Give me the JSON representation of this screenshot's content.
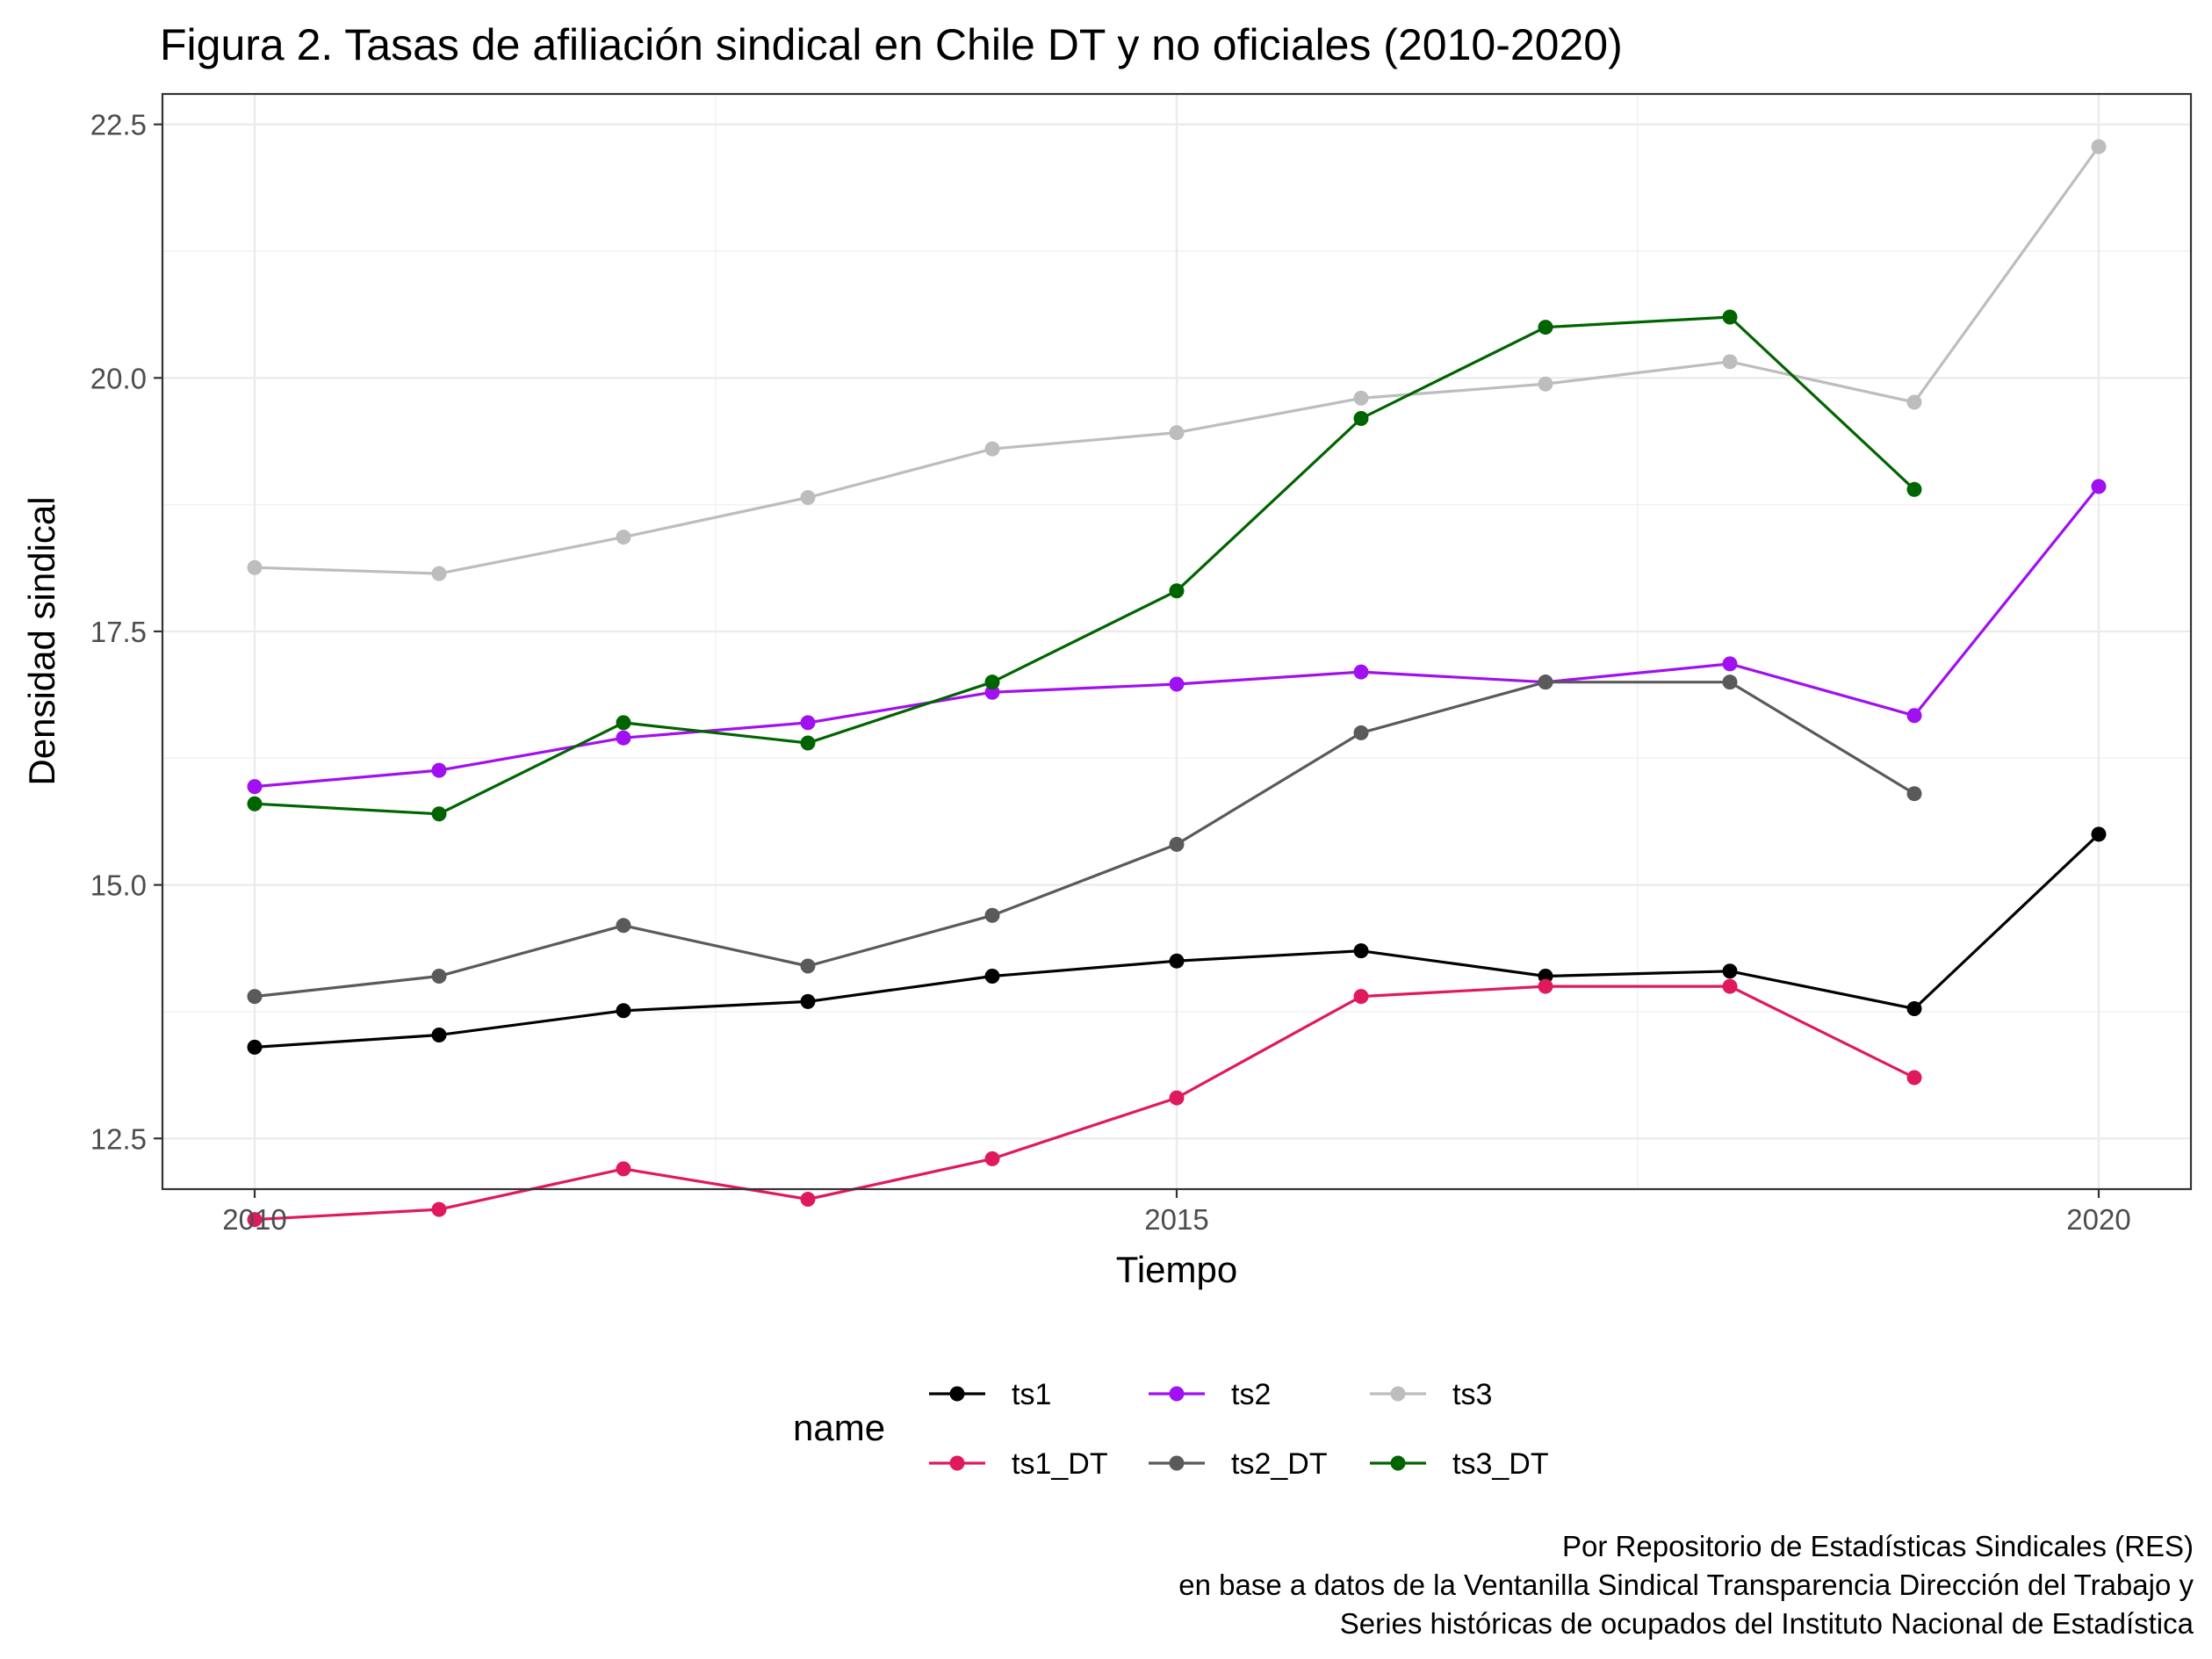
{
  "chart_data": {
    "type": "line",
    "title": "Figura 2. Tasas de afiliación sindical en Chile DT y no oficiales (2010-2020)",
    "xlabel": "Tiempo",
    "ylabel": "Densidad sindical",
    "x": [
      2010,
      2011,
      2012,
      2013,
      2014,
      2015,
      2016,
      2017,
      2018,
      2019,
      2020
    ],
    "xlim": [
      2009.5,
      2020.5
    ],
    "ylim": [
      12.0,
      22.8
    ],
    "xticks": [
      2010,
      2015,
      2020
    ],
    "xtick_labels": [
      "2010",
      "2015",
      "2020"
    ],
    "yticks": [
      12.5,
      15.0,
      17.5,
      20.0,
      22.5
    ],
    "ytick_labels": [
      "12.5",
      "15.0",
      "17.5",
      "20.0",
      "22.5"
    ],
    "grid": true,
    "legend_title": "name",
    "legend_position": "bottom",
    "series": [
      {
        "name": "ts1",
        "color": "#000000",
        "values": [
          13.4,
          13.52,
          13.76,
          13.85,
          14.1,
          14.25,
          14.35,
          14.1,
          14.15,
          13.78,
          15.5
        ]
      },
      {
        "name": "ts1_DT",
        "color": "#e0195c",
        "values": [
          11.7,
          11.8,
          12.2,
          11.9,
          12.3,
          12.9,
          13.9,
          14.0,
          14.0,
          13.1,
          null
        ]
      },
      {
        "name": "ts2",
        "color": "#a010f0",
        "values": [
          15.97,
          16.13,
          16.45,
          16.6,
          16.9,
          16.98,
          17.1,
          17.0,
          17.18,
          16.67,
          18.93
        ]
      },
      {
        "name": "ts2_DT",
        "color": "#5a5a5a",
        "values": [
          13.9,
          14.1,
          14.6,
          14.2,
          14.7,
          15.4,
          16.5,
          17.0,
          17.0,
          15.9,
          null
        ]
      },
      {
        "name": "ts3",
        "color": "#bdbdbd",
        "values": [
          18.13,
          18.07,
          18.43,
          18.82,
          19.3,
          19.46,
          19.8,
          19.94,
          20.16,
          19.76,
          22.28
        ]
      },
      {
        "name": "ts3_DT",
        "color": "#006400",
        "values": [
          15.8,
          15.7,
          16.6,
          16.4,
          17.0,
          17.9,
          19.6,
          20.5,
          20.6,
          18.9,
          null
        ]
      }
    ],
    "caption": [
      "Por Repositorio de Estadísticas Sindicales (RES)",
      "en base a datos de la Ventanilla Sindical Transparencia Dirección del Trabajo y",
      "Series históricas de ocupados del Instituto Nacional de Estadística"
    ]
  }
}
